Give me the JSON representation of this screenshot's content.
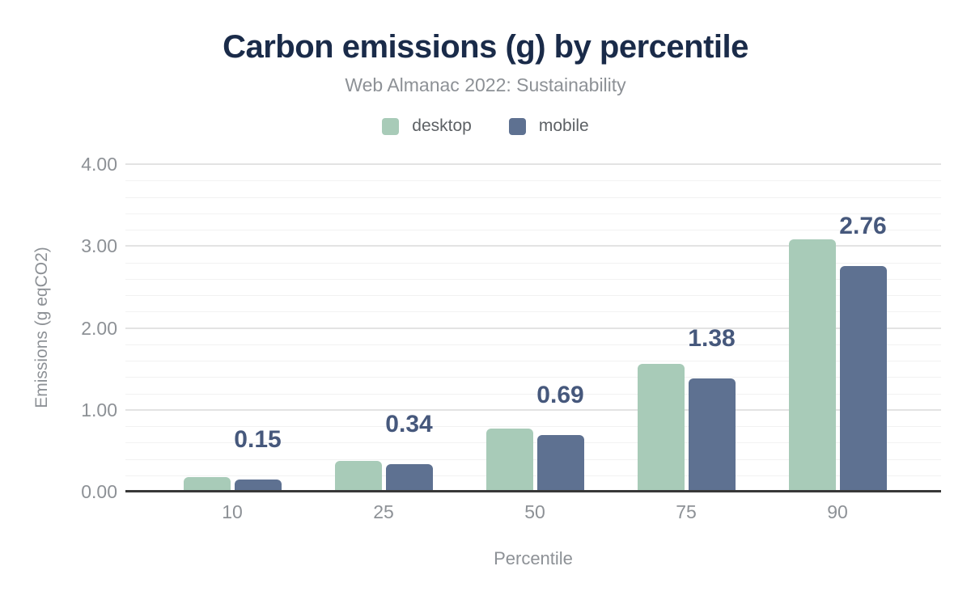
{
  "chart_data": {
    "type": "bar",
    "title": "Carbon emissions (g) by percentile",
    "subtitle": "Web Almanac 2022: Sustainability",
    "categories": [
      "10",
      "25",
      "50",
      "75",
      "90"
    ],
    "series": [
      {
        "name": "desktop",
        "color": "#a8cbb8",
        "values": [
          0.18,
          0.38,
          0.77,
          1.56,
          3.08
        ]
      },
      {
        "name": "mobile",
        "color": "#5e7191",
        "values": [
          0.15,
          0.34,
          0.69,
          1.38,
          2.76
        ],
        "data_labels": [
          "0.15",
          "0.34",
          "0.69",
          "1.38",
          "2.76"
        ]
      }
    ],
    "xlabel": "Percentile",
    "ylabel": "Emissions (g eqCO2)",
    "ylim": [
      0,
      4
    ],
    "y_tick_labels": [
      "0.00",
      "1.00",
      "2.00",
      "3.00",
      "4.00"
    ],
    "y_major_step": 1.0,
    "y_minor_step": 0.2,
    "grid": true,
    "legend_position": "top",
    "data_label_color": "#46587c",
    "axis_line_color": "#383838",
    "title_color": "#1a2b49",
    "background_color": "#ffffff"
  }
}
